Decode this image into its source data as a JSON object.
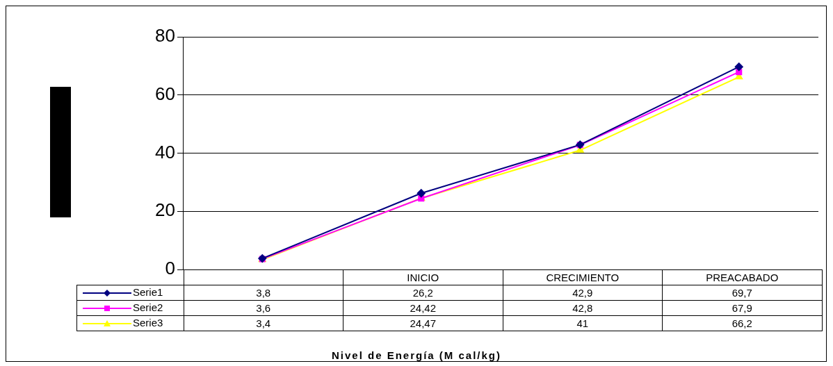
{
  "chart_data": {
    "type": "line",
    "annotations": [
      "Nivel de Energía (M cal/kg)"
    ],
    "categories": [
      null,
      "INICIO",
      "CRECIMIENTO",
      "PREACABADO"
    ],
    "series": [
      {
        "name": "Serie1",
        "color": "#000080",
        "marker": "diamond",
        "values": [
          3.8,
          26.2,
          42.9,
          69.7
        ],
        "value_labels": [
          "3,8",
          "26,2",
          "42,9",
          "69,7"
        ]
      },
      {
        "name": "Serie2",
        "color": "#ff00ff",
        "marker": "square",
        "values": [
          3.6,
          24.42,
          42.8,
          67.9
        ],
        "value_labels": [
          "3,6",
          "24,42",
          "42,8",
          "67,9"
        ]
      },
      {
        "name": "Serie3",
        "color": "#ffff00",
        "marker": "triangle",
        "values": [
          3.4,
          24.47,
          41,
          66.2
        ],
        "value_labels": [
          "3,4",
          "24,47",
          "41",
          "66,2"
        ]
      }
    ],
    "ylim": [
      0,
      80
    ],
    "yticks": [
      0,
      20,
      40,
      60,
      80
    ],
    "grid": "y",
    "legend": "bottom left"
  }
}
